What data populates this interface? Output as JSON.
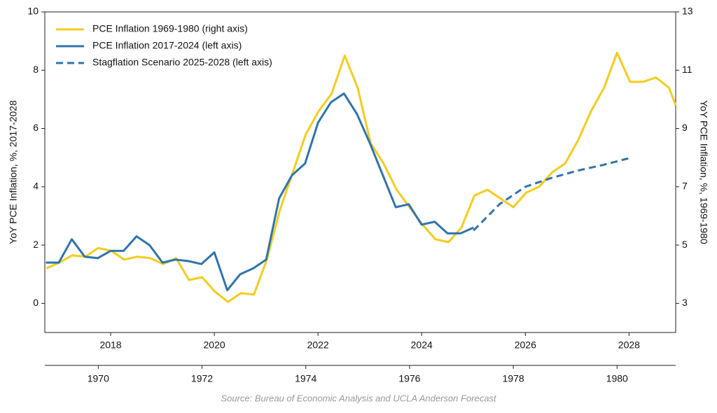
{
  "chart_data": {
    "type": "line",
    "y_label": "YoY PCE Inflation, %, 2017-2028",
    "y2_label": "YoY PCE Inflation, %, 1969-1980",
    "source": "Source: Bureau of Economic Analysis and UCLA Anderson Forecast",
    "xlim": [
      2016.73,
      2028.9
    ],
    "xticks": [
      2018,
      2020,
      2022,
      2024,
      2026,
      2028
    ],
    "x2lim": [
      1968.97,
      1981.13
    ],
    "x2ticks": [
      1970,
      1972,
      1974,
      1976,
      1978,
      1980
    ],
    "ylim": [
      -1,
      10
    ],
    "yticks": [
      0,
      2,
      4,
      6,
      8,
      10
    ],
    "y2lim": [
      2,
      13
    ],
    "y2ticks": [
      3,
      5,
      7,
      9,
      11,
      13
    ],
    "legend": "upper left",
    "series": [
      {
        "name": "PCE Inflation 1969-1980 (right axis)",
        "color": "#f5cc1d",
        "axis": "y2",
        "xaxis": "x2",
        "linestyle": "solid",
        "x": [
          1969.0,
          1969.25,
          1969.5,
          1969.75,
          1970.0,
          1970.25,
          1970.5,
          1970.75,
          1971.0,
          1971.25,
          1971.5,
          1971.75,
          1972.0,
          1972.25,
          1972.5,
          1972.75,
          1973.0,
          1973.25,
          1973.5,
          1973.75,
          1974.0,
          1974.25,
          1974.5,
          1974.75,
          1975.0,
          1975.25,
          1975.5,
          1975.75,
          1976.0,
          1976.25,
          1976.5,
          1976.75,
          1977.0,
          1977.25,
          1977.5,
          1977.75,
          1978.0,
          1978.25,
          1978.5,
          1978.75,
          1979.0,
          1979.25,
          1979.5,
          1979.75,
          1980.0,
          1980.25,
          1980.5,
          1980.75,
          1981.0,
          1981.13
        ],
        "values": [
          4.2,
          4.4,
          4.65,
          4.6,
          4.9,
          4.8,
          4.5,
          4.6,
          4.55,
          4.35,
          4.55,
          3.8,
          3.9,
          3.4,
          3.05,
          3.35,
          3.3,
          4.5,
          6.2,
          7.5,
          8.8,
          9.6,
          10.2,
          11.5,
          10.4,
          8.5,
          7.8,
          6.9,
          6.3,
          5.7,
          5.2,
          5.1,
          5.6,
          6.7,
          6.9,
          6.6,
          6.3,
          6.8,
          7.0,
          7.5,
          7.8,
          8.6,
          9.6,
          10.4,
          11.6,
          10.6,
          10.6,
          10.75,
          10.4,
          9.8
        ]
      },
      {
        "name": "PCE Inflation 2017-2024 (left axis)",
        "color": "#2f74ad",
        "axis": "y",
        "xaxis": "x",
        "linestyle": "solid",
        "x": [
          2016.75,
          2017.0,
          2017.25,
          2017.5,
          2017.75,
          2018.0,
          2018.25,
          2018.5,
          2018.75,
          2019.0,
          2019.25,
          2019.5,
          2019.75,
          2020.0,
          2020.25,
          2020.5,
          2020.75,
          2021.0,
          2021.25,
          2021.5,
          2021.75,
          2022.0,
          2022.25,
          2022.5,
          2022.75,
          2023.0,
          2023.25,
          2023.5,
          2023.75,
          2024.0,
          2024.25,
          2024.5,
          2024.75,
          2025.0
        ],
        "values": [
          1.4,
          1.4,
          2.2,
          1.6,
          1.55,
          1.8,
          1.8,
          2.3,
          2.0,
          1.4,
          1.5,
          1.45,
          1.35,
          1.75,
          0.45,
          1.0,
          1.2,
          1.5,
          3.6,
          4.4,
          4.8,
          6.2,
          6.9,
          7.2,
          6.5,
          5.5,
          4.4,
          3.3,
          3.4,
          2.7,
          2.8,
          2.4,
          2.4,
          2.6
        ]
      },
      {
        "name": "Stagflation Scenario 2025-2028 (left axis)",
        "color": "#2f74ad",
        "axis": "y",
        "xaxis": "x",
        "linestyle": "dashed",
        "x": [
          2025.0,
          2025.5,
          2026.0,
          2026.5,
          2027.0,
          2027.5,
          2028.0
        ],
        "values": [
          2.5,
          3.4,
          4.0,
          4.3,
          4.55,
          4.75,
          4.98
        ]
      }
    ]
  }
}
